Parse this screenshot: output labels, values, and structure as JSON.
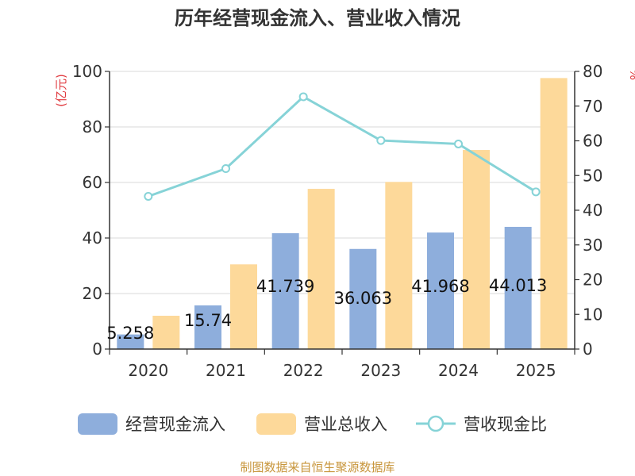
{
  "chart_data": {
    "type": "bar",
    "title": "历年经营现金流入、营业收入情况",
    "categories": [
      "2020",
      "2021",
      "2022",
      "2023",
      "2024",
      "2025"
    ],
    "series": [
      {
        "name": "经营现金流入",
        "kind": "bar",
        "axis": "left",
        "color": "#8eaedc",
        "values": [
          5.258,
          15.74,
          41.739,
          36.063,
          41.968,
          44.013
        ],
        "labels": [
          "5.258",
          "15.74",
          "41.739",
          "36.063",
          "41.968",
          "44.013"
        ]
      },
      {
        "name": "营业总收入",
        "kind": "bar",
        "axis": "left",
        "color": "#fdd99a",
        "values": [
          12,
          30.5,
          57.7,
          60.2,
          71.7,
          97.6
        ]
      },
      {
        "name": "营收现金比",
        "kind": "line",
        "axis": "right",
        "color": "#86d3d7",
        "values": [
          44,
          52,
          72.7,
          60.1,
          59.1,
          45.3
        ]
      }
    ],
    "y_left": {
      "unit": "(亿元)",
      "min": 0,
      "max": 100,
      "ticks": [
        0,
        20,
        40,
        60,
        80,
        100
      ]
    },
    "y_right": {
      "unit": "%",
      "min": 0,
      "max": 80,
      "ticks": [
        0,
        10,
        20,
        30,
        40,
        50,
        60,
        70,
        80
      ]
    },
    "legend_position": "bottom",
    "grid": true
  },
  "footer": {
    "source": "制图数据来自恒生聚源数据库"
  },
  "colors": {
    "axis_unit": "#e0393e",
    "source": "#c8963c",
    "grid": "#d9d9d9",
    "axis": "#333333"
  }
}
